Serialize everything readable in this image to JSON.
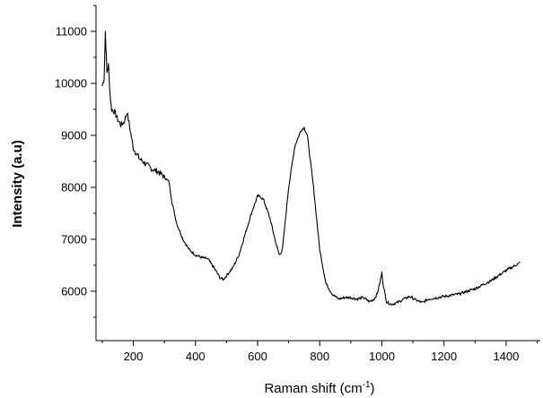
{
  "chart_data": {
    "type": "line",
    "title": "",
    "xlabel": "Raman shift (cm",
    "xlabel_superscript": "-1",
    "xlabel_suffix": ")",
    "ylabel": "Intensity (a.u)",
    "xlim": [
      80,
      1510
    ],
    "ylim": [
      5050,
      11500
    ],
    "xticks": [
      200,
      400,
      600,
      800,
      1000,
      1200,
      1400
    ],
    "yticks": [
      6000,
      7000,
      8000,
      9000,
      10000,
      11000
    ],
    "grid": false,
    "legend": "none",
    "line_color": "#000000",
    "series": [
      {
        "name": "",
        "x": [
          100,
          106,
          110,
          115,
          120,
          125,
          130,
          140,
          150,
          160,
          170,
          180,
          190,
          200,
          220,
          240,
          260,
          280,
          300,
          315,
          325,
          340,
          360,
          380,
          400,
          420,
          440,
          460,
          480,
          490,
          500,
          520,
          540,
          560,
          580,
          600,
          610,
          620,
          640,
          660,
          670,
          680,
          690,
          700,
          720,
          740,
          750,
          760,
          780,
          800,
          820,
          840,
          860,
          880,
          900,
          920,
          940,
          960,
          975,
          985,
          995,
          1000,
          1005,
          1015,
          1030,
          1050,
          1070,
          1090,
          1110,
          1130,
          1150,
          1200,
          1250,
          1300,
          1350,
          1400,
          1445
        ],
        "y": [
          9950,
          10100,
          11000,
          10200,
          10350,
          9800,
          9500,
          9450,
          9300,
          9200,
          9250,
          9450,
          9100,
          8750,
          8550,
          8450,
          8350,
          8300,
          8200,
          8100,
          7700,
          7300,
          7000,
          6800,
          6700,
          6650,
          6620,
          6450,
          6250,
          6230,
          6300,
          6450,
          6700,
          7100,
          7500,
          7830,
          7820,
          7750,
          7400,
          6900,
          6700,
          6800,
          7400,
          8000,
          8800,
          9100,
          9150,
          9000,
          8000,
          6800,
          6150,
          5950,
          5850,
          5880,
          5880,
          5850,
          5880,
          5800,
          5850,
          5950,
          6200,
          6350,
          6100,
          5800,
          5750,
          5780,
          5850,
          5900,
          5830,
          5780,
          5850,
          5900,
          5950,
          6050,
          6200,
          6400,
          6550
        ]
      }
    ]
  }
}
